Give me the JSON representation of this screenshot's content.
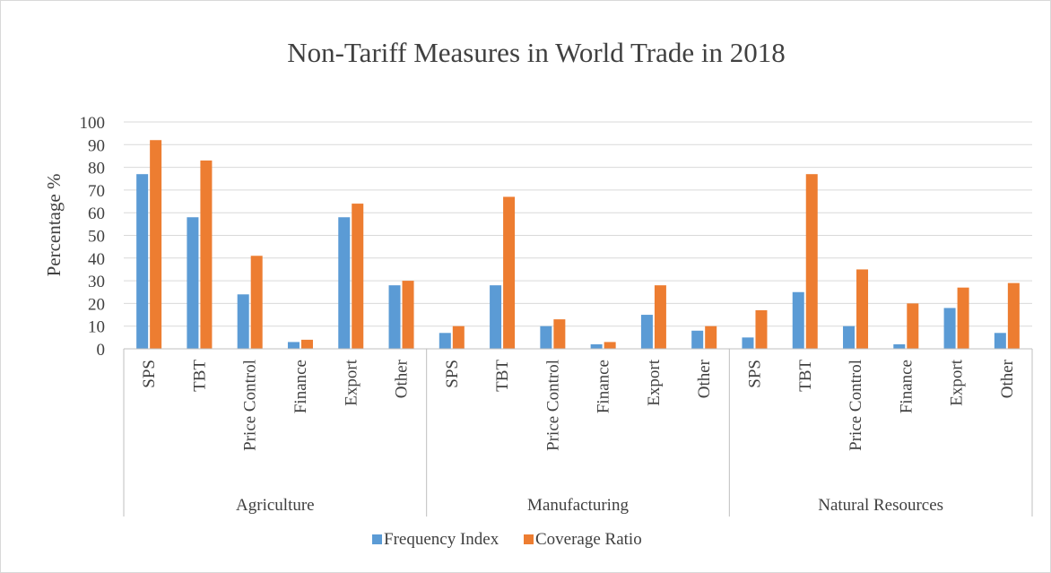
{
  "chart_data": {
    "type": "bar",
    "title": "Non-Tariff Measures in World Trade in 2018",
    "xlabel": "",
    "ylabel": "Percentage %",
    "ylim": [
      0,
      100
    ],
    "yticks": [
      0,
      10,
      20,
      30,
      40,
      50,
      60,
      70,
      80,
      90,
      100
    ],
    "grid": true,
    "legend_position": "bottom",
    "groups": [
      "Agriculture",
      "Manufacturing",
      "Natural Resources"
    ],
    "categories": [
      "SPS",
      "TBT",
      "Price Control",
      "Finance",
      "Export",
      "Other"
    ],
    "series": [
      {
        "name": "Frequency Index",
        "color": "#5b9bd5",
        "values": [
          [
            77,
            58,
            24,
            3,
            58,
            28
          ],
          [
            7,
            28,
            10,
            2,
            15,
            8
          ],
          [
            5,
            25,
            10,
            2,
            18,
            7
          ]
        ]
      },
      {
        "name": "Coverage Ratio",
        "color": "#ed7d31",
        "values": [
          [
            92,
            83,
            41,
            4,
            64,
            30
          ],
          [
            10,
            67,
            13,
            3,
            28,
            10
          ],
          [
            17,
            77,
            35,
            20,
            27,
            29
          ]
        ]
      }
    ]
  }
}
